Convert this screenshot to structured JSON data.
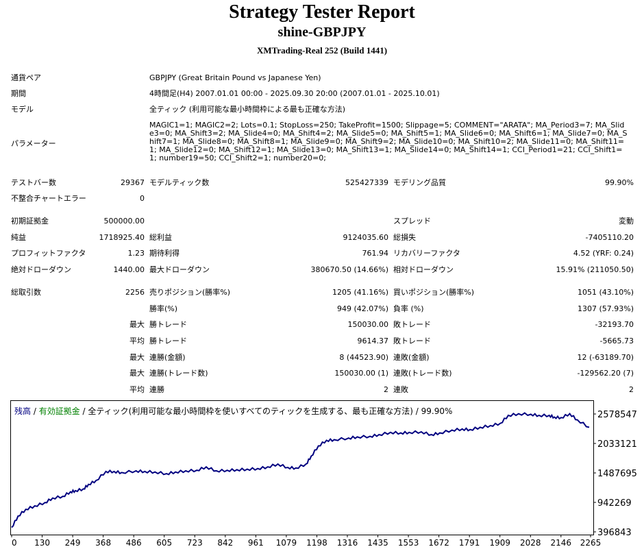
{
  "header": {
    "title": "Strategy Tester Report",
    "subtitle": "shine-GBPJPY",
    "broker": "XMTrading-Real 252 (Build 1441)"
  },
  "info": {
    "symbol_label": "通貨ペア",
    "symbol_value": "GBPJPY (Great Britain Pound vs Japanese Yen)",
    "period_label": "期間",
    "period_value": "4時間足(H4) 2007.01.01 00:00 - 2025.09.30 20:00 (2007.01.01 - 2025.10.01)",
    "model_label": "モデル",
    "model_value": "全ティック (利用可能な最小時間枠による最も正確な方法)",
    "params_label": "パラメーター",
    "params_value": "MAGIC1=1; MAGIC2=2; Lots=0.1; StopLoss=250; TakeProfit=1500; Slippage=5; COMMENT=\"ARATA\"; MA_Period3=7; MA_Slide3=0; MA_Shift3=2; MA_Slide4=0; MA_Shift4=2; MA_Slide5=0; MA_Shift5=1; MA_Slide6=0; MA_Shift6=1; MA_Slide7=0; MA_Shift7=1; MA_Slide8=0; MA_Shift8=1; MA_Slide9=0; MA_Shift9=2; MA_Slide10=0; MA_Shift10=2; MA_Slide11=0; MA_Shift11=1; MA_Slide12=0; MA_Shift12=1; MA_Slide13=0; MA_Shift13=1; MA_Slide14=0; MA_Shift14=1; CCI_Period1=21; CCI_Shift1=1; number19=50; CCI_Shift2=1; number20=0;"
  },
  "stats": {
    "bars_label": "テストバー数",
    "bars_value": "29367",
    "ticks_label": "モデルティック数",
    "ticks_value": "525427339",
    "quality_label": "モデリング品質",
    "quality_value": "99.90%",
    "mismatch_label": "不整合チャートエラー",
    "mismatch_value": "0",
    "deposit_label": "初期証拠金",
    "deposit_value": "500000.00",
    "spread_label": "スプレッド",
    "spread_value": "変動",
    "netprofit_label": "純益",
    "netprofit_value": "1718925.40",
    "grossprofit_label": "総利益",
    "grossprofit_value": "9124035.60",
    "grossloss_label": "総損失",
    "grossloss_value": "-7405110.20",
    "pf_label": "プロフィットファクタ",
    "pf_value": "1.23",
    "payoff_label": "期待利得",
    "payoff_value": "761.94",
    "recovery_label": "リカバリーファクタ",
    "recovery_value": "4.52 (YRF: 0.24)",
    "absdd_label": "絶対ドローダウン",
    "absdd_value": "1440.00",
    "maxdd_label": "最大ドローダウン",
    "maxdd_value": "380670.50 (14.66%)",
    "reldd_label": "相対ドローダウン",
    "reldd_value": "15.91% (211050.50)",
    "trades_label": "総取引数",
    "trades_value": "2256",
    "short_label": "売りポジション(勝率%)",
    "short_value": "1205 (41.16%)",
    "long_label": "買いポジション(勝率%)",
    "long_value": "1051 (43.10%)",
    "winrate_label": "勝率(%)",
    "winrate_value": "949 (42.07%)",
    "lossrate_label": "負率 (%)",
    "lossrate_value": "1307 (57.93%)",
    "max_prefix": "最大",
    "avg_prefix": "平均",
    "largest_win_label": "勝トレード",
    "largest_win_value": "150030.00",
    "largest_loss_label": "敗トレード",
    "largest_loss_value": "-32193.70",
    "avg_win_label": "勝トレード",
    "avg_win_value": "9614.37",
    "avg_loss_label": "敗トレード",
    "avg_loss_value": "-5665.73",
    "consec_wins_money_label": "連勝(金額)",
    "consec_wins_money_value": "8 (44523.90)",
    "consec_losses_money_label": "連敗(金額)",
    "consec_losses_money_value": "12 (-63189.70)",
    "consec_profit_label": "連勝(トレード数)",
    "consec_profit_value": "150030.00 (1)",
    "consec_loss_label": "連敗(トレード数)",
    "consec_loss_value": "-129562.20 (7)",
    "avg_consec_wins_label": "連勝",
    "avg_consec_wins_value": "2",
    "avg_consec_losses_label": "連敗",
    "avg_consec_losses_value": "2"
  },
  "chart_data": {
    "type": "line",
    "legend": {
      "balance": "残高",
      "sep1": " / ",
      "equity": "有効証拠金",
      "rest": " / 全ティック(利用可能な最小時間枠を使いすべてのティックを生成する、最も正確な方法) / 99.90%"
    },
    "colors": {
      "line": "#000080",
      "balance_text": "#000080",
      "equity_text": "#008000",
      "grid": "#cccccc"
    },
    "x_ticks": [
      "0",
      "130",
      "249",
      "368",
      "486",
      "605",
      "723",
      "842",
      "961",
      "1079",
      "1198",
      "1316",
      "1435",
      "1553",
      "1672",
      "1791",
      "1909",
      "2028",
      "2146",
      "2265"
    ],
    "y_ticks": [
      "2578547",
      "2033121",
      "1487695",
      "942269",
      "396843"
    ],
    "xlim": [
      0,
      2256
    ],
    "ylim": [
      396843,
      2650000
    ],
    "series": [
      {
        "x": [
          0,
          25,
          55,
          90,
          130,
          160,
          200,
          230,
          249,
          280,
          300,
          330,
          368,
          400,
          430,
          486,
          520,
          560,
          605,
          640,
          680,
          723,
          760,
          800,
          842,
          880,
          920,
          961,
          1000,
          1040,
          1079,
          1110,
          1150,
          1170,
          1198,
          1230,
          1260,
          1316,
          1350,
          1400,
          1435,
          1480,
          1520,
          1553,
          1600,
          1640,
          1672,
          1720,
          1760,
          1791,
          1830,
          1870,
          1909,
          1940,
          1980,
          2028,
          2060,
          2100,
          2120,
          2146,
          2180,
          2210,
          2256
        ],
        "y": [
          500000,
          700000,
          820000,
          880000,
          940000,
          1020000,
          1050000,
          1130000,
          1150000,
          1180000,
          1260000,
          1330000,
          1490000,
          1490000,
          1470000,
          1500000,
          1490000,
          1480000,
          1450000,
          1480000,
          1500000,
          1510000,
          1570000,
          1500000,
          1510000,
          1520000,
          1530000,
          1540000,
          1570000,
          1620000,
          1560000,
          1550000,
          1620000,
          1760000,
          1940000,
          2040000,
          2050000,
          2080000,
          2100000,
          2110000,
          2140000,
          2180000,
          2170000,
          2180000,
          2190000,
          2140000,
          2170000,
          2220000,
          2240000,
          2230000,
          2270000,
          2300000,
          2340000,
          2480000,
          2510000,
          2500000,
          2480000,
          2480000,
          2450000,
          2440000,
          2510000,
          2400000,
          2270000
        ]
      }
    ]
  }
}
